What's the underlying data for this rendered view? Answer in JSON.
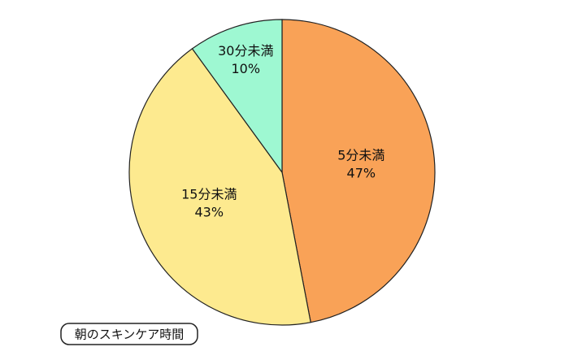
{
  "chart_data": {
    "type": "pie",
    "title": "朝のスキンケア時間",
    "categories": [
      "5分未満",
      "15分未満",
      "30分未満"
    ],
    "values": [
      47,
      43,
      10
    ],
    "value_labels": [
      "47%",
      "43%",
      "10%"
    ],
    "colors": [
      "#f9a257",
      "#fdea8f",
      "#9ef8d2"
    ]
  }
}
